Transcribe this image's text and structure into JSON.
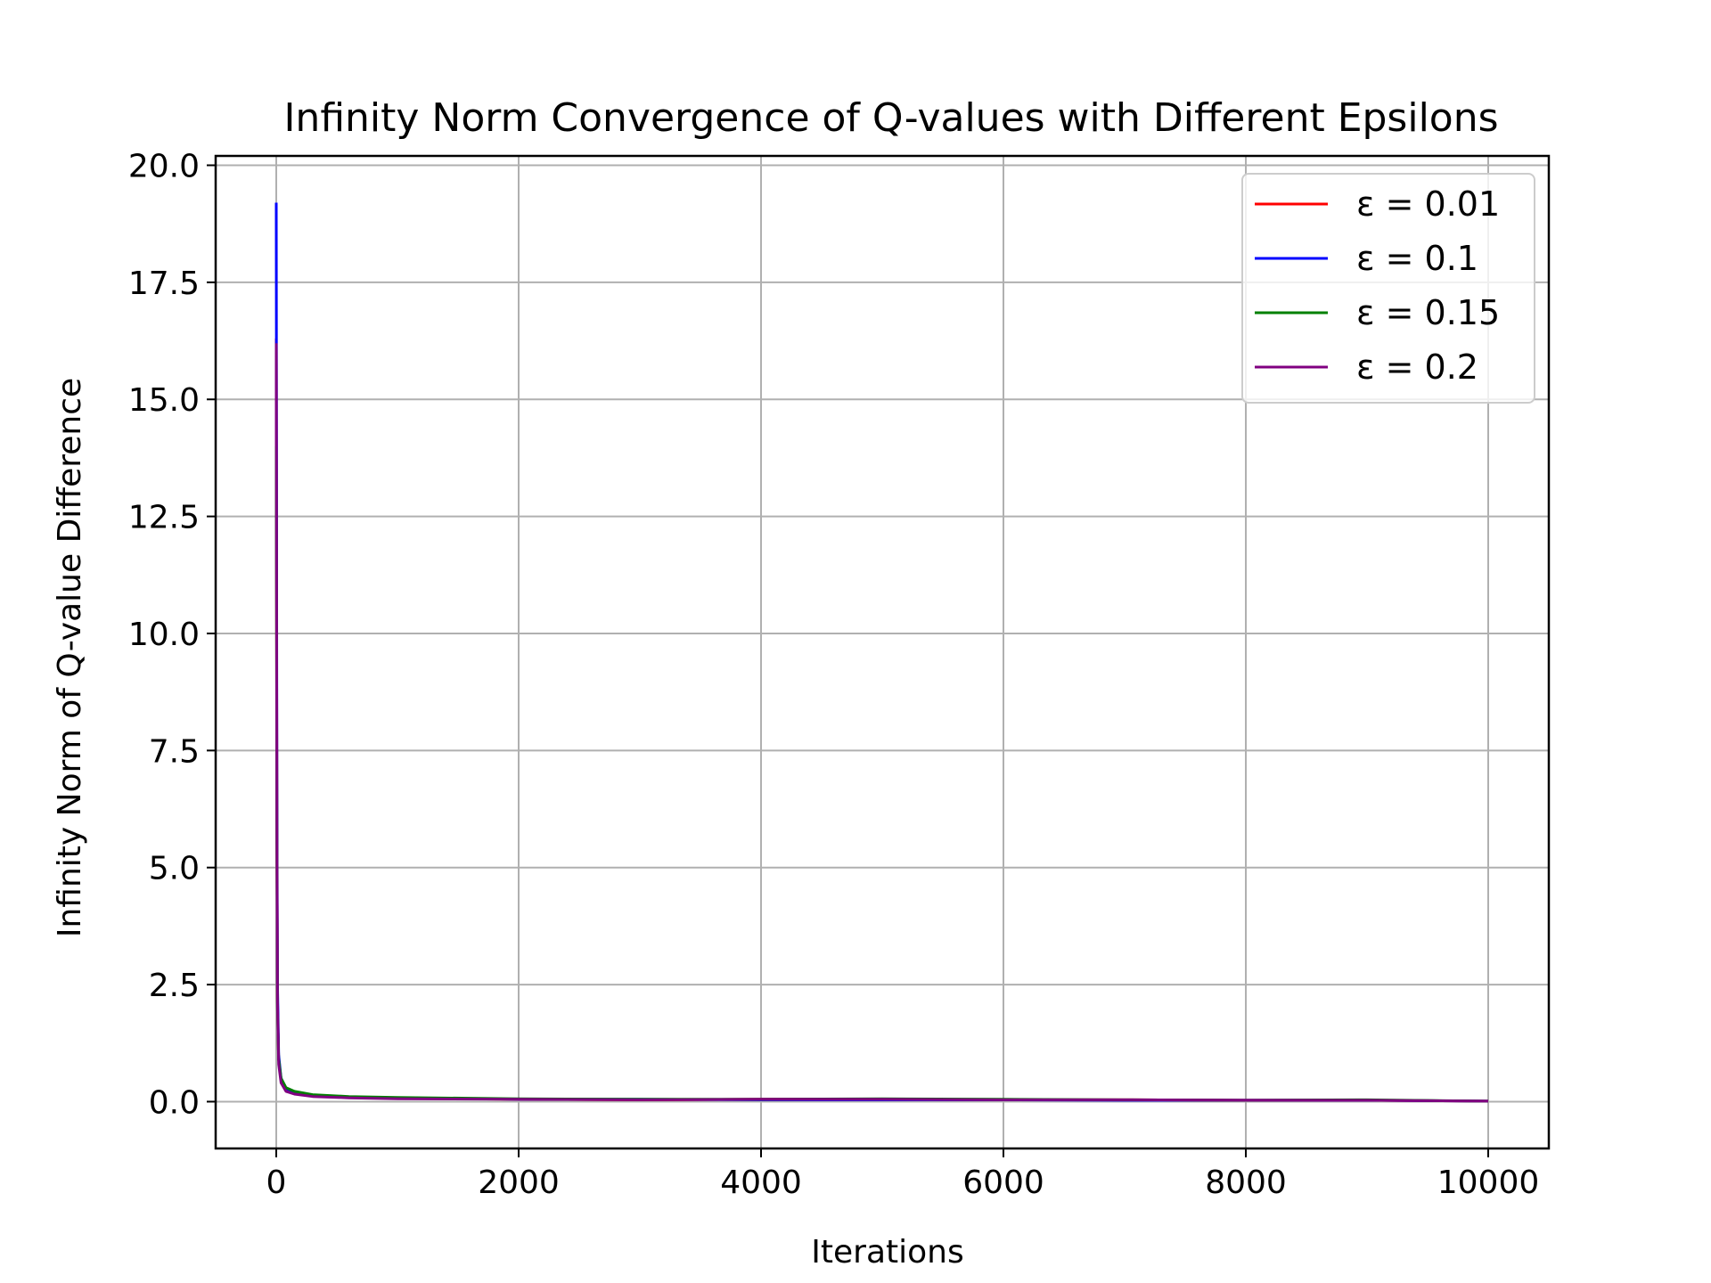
{
  "chart_data": {
    "type": "line",
    "title": "Infinity Norm Convergence of Q-values with Different Epsilons",
    "xlabel": "Iterations",
    "ylabel": "Infinity Norm of Q-value Difference",
    "xlim": [
      -500,
      10500
    ],
    "ylim": [
      -1.0,
      20.2
    ],
    "xticks": [
      0,
      2000,
      4000,
      6000,
      8000,
      10000
    ],
    "xtick_labels": [
      "0",
      "2000",
      "4000",
      "6000",
      "8000",
      "10000"
    ],
    "yticks": [
      0.0,
      2.5,
      5.0,
      7.5,
      10.0,
      12.5,
      15.0,
      17.5,
      20.0
    ],
    "ytick_labels": [
      "0.0",
      "2.5",
      "5.0",
      "7.5",
      "10.0",
      "12.5",
      "15.0",
      "17.5",
      "20.0"
    ],
    "grid": true,
    "legend_position": "upper right",
    "series": [
      {
        "name": "ε = 0.01",
        "color": "#ff0000",
        "x": [
          0,
          5,
          10,
          20,
          40,
          80,
          150,
          300,
          600,
          1000,
          2000,
          3000,
          4000,
          5000,
          6000,
          7000,
          8000,
          9000,
          10000
        ],
        "values": [
          16.3,
          6.0,
          2.2,
          0.9,
          0.45,
          0.25,
          0.18,
          0.12,
          0.09,
          0.07,
          0.05,
          0.04,
          0.05,
          0.05,
          0.04,
          0.04,
          0.03,
          0.03,
          0.01
        ]
      },
      {
        "name": "ε = 0.1",
        "color": "#0000ff",
        "x": [
          0,
          5,
          10,
          20,
          40,
          80,
          150,
          300,
          600,
          1000,
          2000,
          3000,
          4000,
          5000,
          6000,
          7000,
          8000,
          9000,
          10000
        ],
        "values": [
          19.2,
          7.0,
          2.5,
          1.0,
          0.5,
          0.28,
          0.2,
          0.14,
          0.1,
          0.08,
          0.05,
          0.05,
          0.04,
          0.04,
          0.04,
          0.03,
          0.03,
          0.03,
          0.01
        ]
      },
      {
        "name": "ε = 0.15",
        "color": "#008000",
        "x": [
          0,
          5,
          10,
          20,
          40,
          80,
          150,
          300,
          600,
          1000,
          2000,
          3000,
          4000,
          5000,
          6000,
          7000,
          8000,
          9000,
          10000
        ],
        "values": [
          14.0,
          5.5,
          2.0,
          0.9,
          0.5,
          0.3,
          0.22,
          0.15,
          0.11,
          0.09,
          0.06,
          0.05,
          0.05,
          0.06,
          0.05,
          0.04,
          0.03,
          0.04,
          0.01
        ]
      },
      {
        "name": "ε = 0.2",
        "color": "#800080",
        "x": [
          0,
          5,
          10,
          20,
          40,
          80,
          150,
          300,
          600,
          1000,
          2000,
          3000,
          4000,
          5000,
          6000,
          7000,
          8000,
          9000,
          10000
        ],
        "values": [
          16.2,
          6.0,
          2.1,
          0.8,
          0.4,
          0.22,
          0.16,
          0.11,
          0.08,
          0.06,
          0.05,
          0.04,
          0.05,
          0.05,
          0.04,
          0.04,
          0.03,
          0.03,
          0.01
        ]
      }
    ]
  }
}
